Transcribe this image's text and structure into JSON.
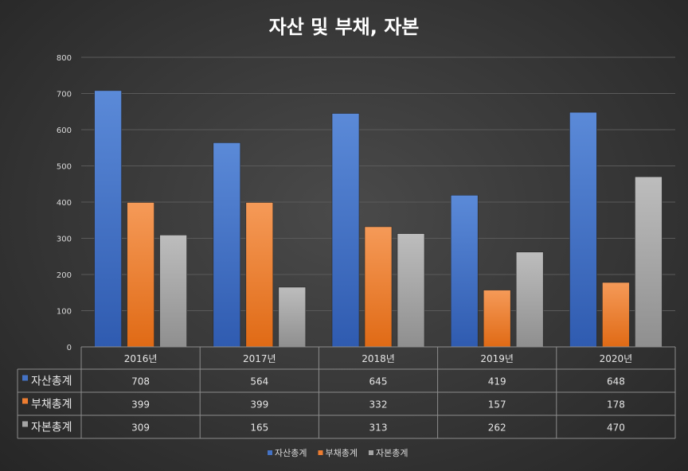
{
  "chart_data": {
    "type": "bar",
    "title": "자산 및 부채, 자본",
    "categories": [
      "2016년",
      "2017년",
      "2018년",
      "2019년",
      "2020년"
    ],
    "series": [
      {
        "name": "자산총계",
        "values": [
          708,
          564,
          645,
          419,
          648
        ],
        "color": "#4472c4"
      },
      {
        "name": "부채총계",
        "values": [
          399,
          399,
          332,
          157,
          178
        ],
        "color": "#ed7d31"
      },
      {
        "name": "자본총계",
        "values": [
          309,
          165,
          313,
          262,
          470
        ],
        "color": "#a5a5a5"
      }
    ],
    "ylim": [
      0,
      800
    ],
    "yticks": [
      0,
      100,
      200,
      300,
      400,
      500,
      600,
      700,
      800
    ],
    "grid": true,
    "legend_position": "bottom",
    "data_table": true
  }
}
